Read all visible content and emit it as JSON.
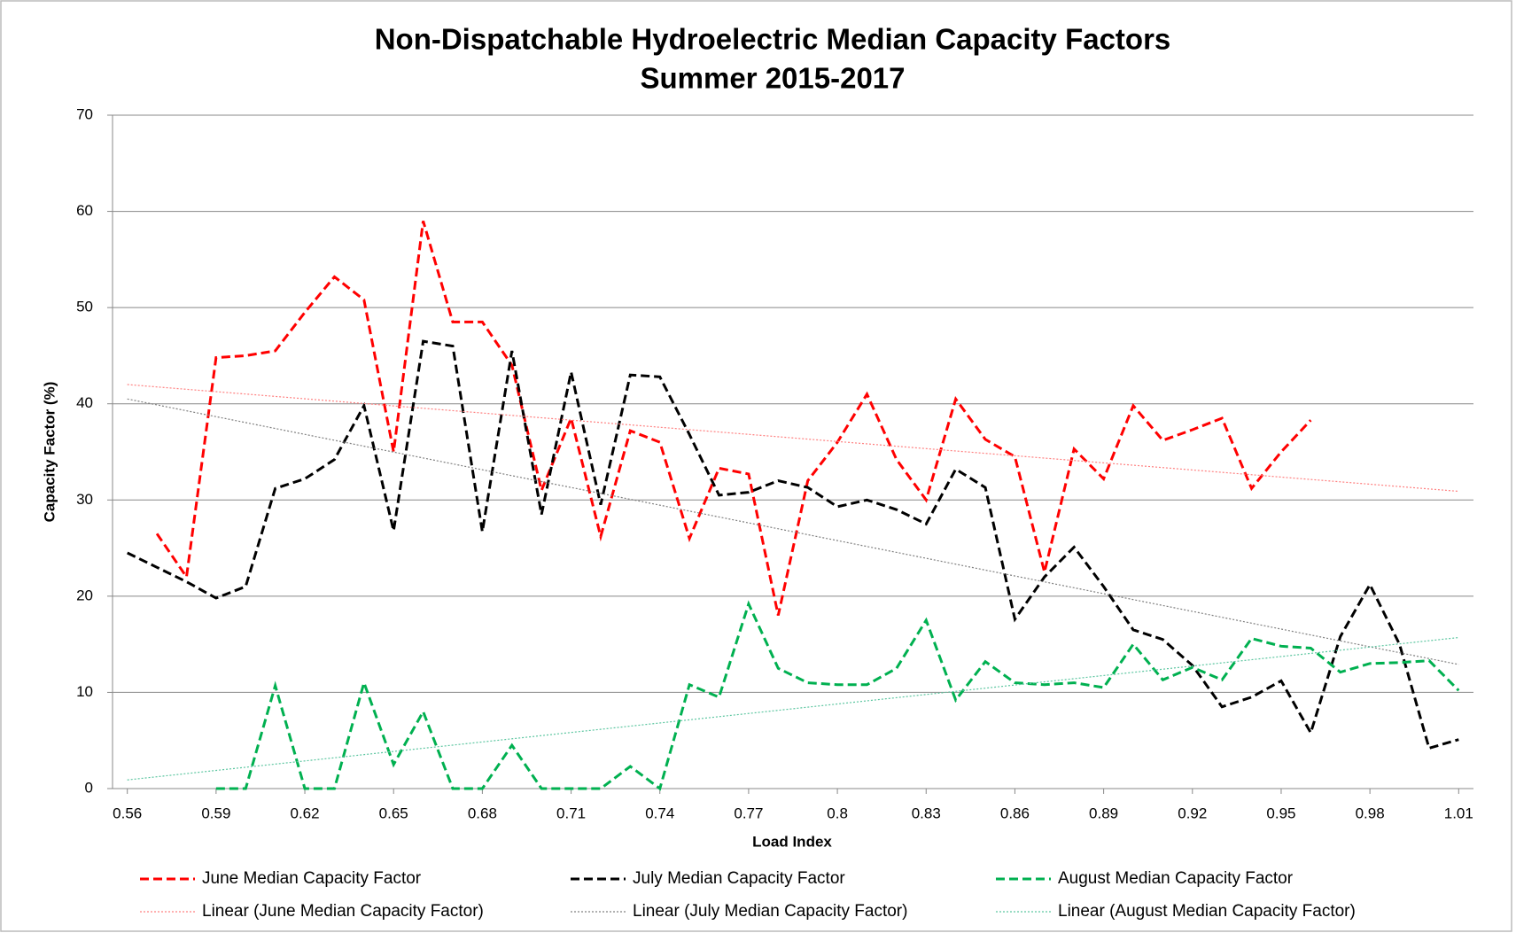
{
  "chart_data": {
    "type": "line",
    "title": "Non-Dispatchable Hydroelectric Median Capacity Factors",
    "subtitle": "Summer 2015-2017",
    "x_label": "Load Index",
    "y_label": "Capacity Factor (%)",
    "x": [
      0.56,
      0.57,
      0.58,
      0.59,
      0.6,
      0.61,
      0.62,
      0.63,
      0.64,
      0.65,
      0.66,
      0.67,
      0.68,
      0.69,
      0.7,
      0.71,
      0.72,
      0.73,
      0.74,
      0.75,
      0.76,
      0.77,
      0.78,
      0.79,
      0.8,
      0.81,
      0.82,
      0.83,
      0.84,
      0.85,
      0.86,
      0.87,
      0.88,
      0.89,
      0.9,
      0.91,
      0.92,
      0.93,
      0.94,
      0.95,
      0.96,
      0.97,
      0.98,
      0.99,
      1.0,
      1.01
    ],
    "xlim": [
      0.555,
      1.015
    ],
    "xticks": [
      0.56,
      0.59,
      0.62,
      0.65,
      0.68,
      0.71,
      0.74,
      0.77,
      0.8,
      0.83,
      0.86,
      0.89,
      0.92,
      0.95,
      0.98,
      1.01
    ],
    "ylim": [
      0,
      70
    ],
    "yticks": [
      0,
      10,
      20,
      30,
      40,
      50,
      60,
      70
    ],
    "grid": true,
    "legend": "bottom",
    "series": [
      {
        "name": "June Median Capacity Factor",
        "color": "#ff0000",
        "dash": "dashed",
        "values": [
          null,
          26.5,
          22,
          44.8,
          45,
          45.5,
          49.5,
          53.2,
          50.8,
          35,
          59,
          48.5,
          48.5,
          44,
          31,
          38.5,
          26.2,
          37.2,
          36,
          26,
          33.3,
          32.7,
          18,
          32,
          36,
          41,
          34.2,
          30,
          40.5,
          36.3,
          34.5,
          22.5,
          35.3,
          32.2,
          39.8,
          36.2,
          37.3,
          38.5,
          31.2,
          35,
          38.3,
          null,
          null,
          null,
          null,
          null
        ]
      },
      {
        "name": "July Median Capacity Factor",
        "color": "#000000",
        "dash": "dashed",
        "values": [
          24.5,
          23,
          21.5,
          19.8,
          21,
          31.2,
          32.2,
          34.2,
          39.8,
          26.8,
          46.5,
          46,
          26.7,
          45.5,
          28.5,
          43.3,
          29.5,
          43,
          42.8,
          36.8,
          30.5,
          30.8,
          32,
          31.3,
          29.3,
          30,
          29,
          27.5,
          33.2,
          31.3,
          17.6,
          22,
          25.1,
          21,
          16.5,
          15.5,
          12.8,
          8.5,
          9.5,
          11.2,
          5.8,
          15.8,
          21.2,
          15,
          4.2,
          5.1
        ]
      },
      {
        "name": "August Median Capacity Factor",
        "color": "#00b050",
        "dash": "dashed",
        "values": [
          null,
          null,
          null,
          0,
          0,
          10.7,
          0,
          0,
          11,
          2.5,
          8,
          0,
          0,
          4.5,
          0,
          0,
          0,
          2.3,
          0,
          10.8,
          9.5,
          19.2,
          12.5,
          11,
          10.8,
          10.8,
          12.5,
          17.5,
          9.2,
          13.2,
          11,
          10.8,
          11,
          10.5,
          15,
          11.3,
          12.6,
          11.3,
          15.6,
          14.8,
          14.6,
          12.1,
          13,
          13.1,
          13.3,
          10.2
        ]
      },
      {
        "name": "Linear (June Median Capacity Factor)",
        "color": "#ff8080",
        "dash": "dotted",
        "x": [
          0.56,
          1.01
        ],
        "values": [
          42,
          30.9
        ]
      },
      {
        "name": "Linear (July Median Capacity Factor)",
        "color": "#808080",
        "dash": "dotted",
        "x": [
          0.56,
          1.01
        ],
        "values": [
          40.5,
          12.9
        ]
      },
      {
        "name": "Linear (August Median Capacity Factor)",
        "color": "#5cc6a0",
        "dash": "dotted",
        "x": [
          0.56,
          1.01
        ],
        "values": [
          0.9,
          15.7
        ]
      }
    ]
  }
}
